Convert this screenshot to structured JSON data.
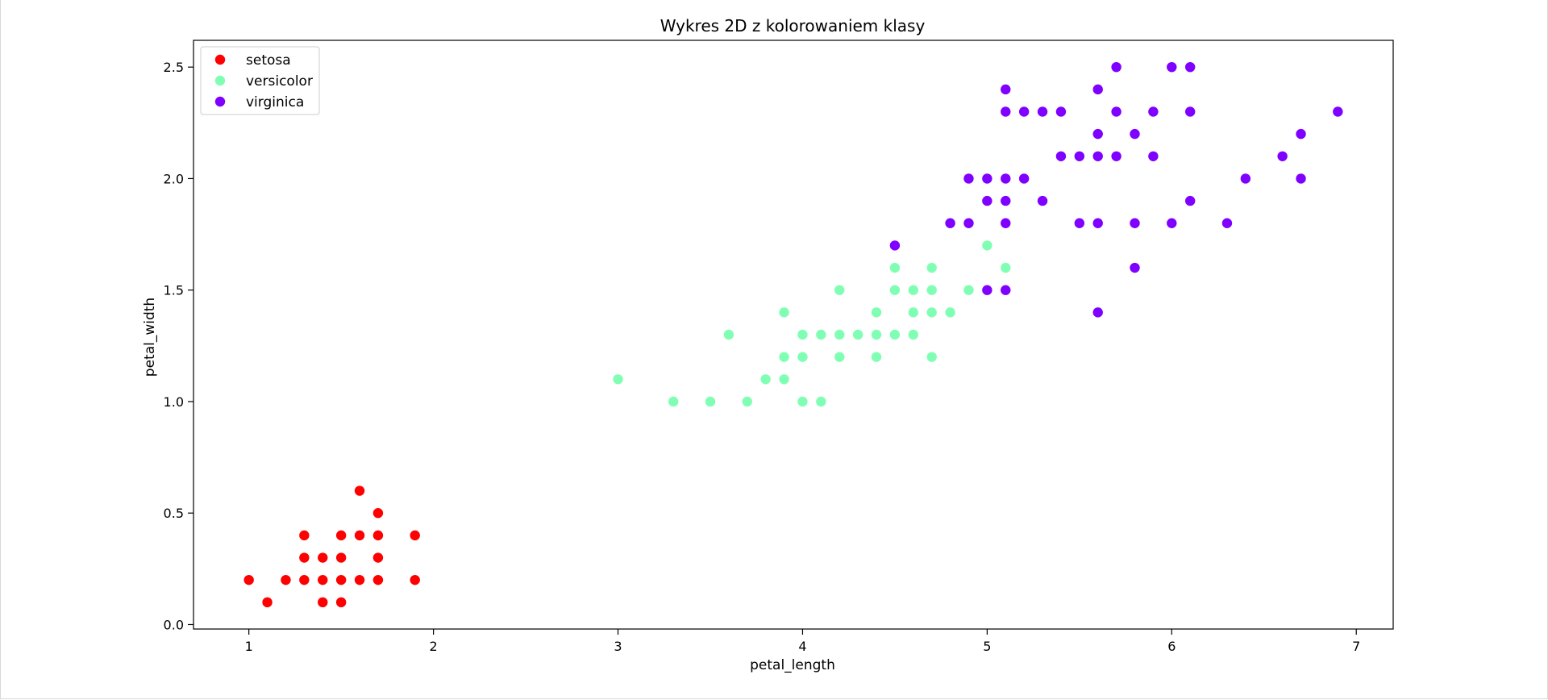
{
  "chart_data": {
    "type": "scatter",
    "title": "Wykres 2D z kolorowaniem klasy",
    "xlabel": "petal_length",
    "ylabel": "petal_width",
    "xlim": [
      0.7,
      7.2
    ],
    "ylim": [
      -0.02,
      2.62
    ],
    "xticks": [
      1,
      2,
      3,
      4,
      5,
      6,
      7
    ],
    "xtick_labels": [
      "1",
      "2",
      "3",
      "4",
      "5",
      "6",
      "7"
    ],
    "yticks": [
      0.0,
      0.5,
      1.0,
      1.5,
      2.0,
      2.5
    ],
    "ytick_labels": [
      "0.0",
      "0.5",
      "1.0",
      "1.5",
      "2.0",
      "2.5"
    ],
    "grid": false,
    "legend_position": "top-left",
    "series": [
      {
        "name": "setosa",
        "color": "#ff0000",
        "points": [
          [
            1.0,
            0.2
          ],
          [
            1.1,
            0.1
          ],
          [
            1.2,
            0.2
          ],
          [
            1.3,
            0.2
          ],
          [
            1.3,
            0.3
          ],
          [
            1.3,
            0.4
          ],
          [
            1.4,
            0.1
          ],
          [
            1.4,
            0.2
          ],
          [
            1.4,
            0.3
          ],
          [
            1.5,
            0.1
          ],
          [
            1.5,
            0.2
          ],
          [
            1.5,
            0.3
          ],
          [
            1.5,
            0.4
          ],
          [
            1.6,
            0.2
          ],
          [
            1.6,
            0.4
          ],
          [
            1.6,
            0.6
          ],
          [
            1.7,
            0.2
          ],
          [
            1.7,
            0.3
          ],
          [
            1.7,
            0.4
          ],
          [
            1.7,
            0.5
          ],
          [
            1.9,
            0.2
          ],
          [
            1.9,
            0.4
          ]
        ]
      },
      {
        "name": "versicolor",
        "color": "#80ffb4",
        "points": [
          [
            3.0,
            1.1
          ],
          [
            3.3,
            1.0
          ],
          [
            3.5,
            1.0
          ],
          [
            3.6,
            1.3
          ],
          [
            3.7,
            1.0
          ],
          [
            3.8,
            1.1
          ],
          [
            3.9,
            1.1
          ],
          [
            3.9,
            1.2
          ],
          [
            3.9,
            1.4
          ],
          [
            4.0,
            1.0
          ],
          [
            4.0,
            1.2
          ],
          [
            4.0,
            1.3
          ],
          [
            4.1,
            1.0
          ],
          [
            4.1,
            1.3
          ],
          [
            4.2,
            1.2
          ],
          [
            4.2,
            1.3
          ],
          [
            4.2,
            1.5
          ],
          [
            4.3,
            1.3
          ],
          [
            4.4,
            1.2
          ],
          [
            4.4,
            1.3
          ],
          [
            4.4,
            1.4
          ],
          [
            4.5,
            1.3
          ],
          [
            4.5,
            1.5
          ],
          [
            4.5,
            1.6
          ],
          [
            4.6,
            1.3
          ],
          [
            4.6,
            1.4
          ],
          [
            4.6,
            1.5
          ],
          [
            4.7,
            1.2
          ],
          [
            4.7,
            1.4
          ],
          [
            4.7,
            1.5
          ],
          [
            4.7,
            1.6
          ],
          [
            4.8,
            1.4
          ],
          [
            4.8,
            1.8
          ],
          [
            4.9,
            1.5
          ],
          [
            5.0,
            1.7
          ],
          [
            5.1,
            1.6
          ]
        ]
      },
      {
        "name": "virginica",
        "color": "#8000ff",
        "points": [
          [
            4.5,
            1.7
          ],
          [
            4.8,
            1.8
          ],
          [
            4.9,
            1.8
          ],
          [
            4.9,
            2.0
          ],
          [
            5.0,
            1.5
          ],
          [
            5.0,
            1.9
          ],
          [
            5.0,
            2.0
          ],
          [
            5.1,
            1.5
          ],
          [
            5.1,
            1.8
          ],
          [
            5.1,
            1.9
          ],
          [
            5.1,
            2.0
          ],
          [
            5.1,
            2.3
          ],
          [
            5.1,
            2.4
          ],
          [
            5.2,
            2.0
          ],
          [
            5.2,
            2.3
          ],
          [
            5.3,
            1.9
          ],
          [
            5.3,
            2.3
          ],
          [
            5.4,
            2.1
          ],
          [
            5.4,
            2.3
          ],
          [
            5.5,
            1.8
          ],
          [
            5.5,
            2.1
          ],
          [
            5.6,
            1.4
          ],
          [
            5.6,
            1.8
          ],
          [
            5.6,
            2.1
          ],
          [
            5.6,
            2.2
          ],
          [
            5.6,
            2.4
          ],
          [
            5.7,
            2.1
          ],
          [
            5.7,
            2.3
          ],
          [
            5.7,
            2.5
          ],
          [
            5.8,
            1.6
          ],
          [
            5.8,
            1.8
          ],
          [
            5.8,
            2.2
          ],
          [
            5.9,
            2.1
          ],
          [
            5.9,
            2.3
          ],
          [
            6.0,
            1.8
          ],
          [
            6.0,
            2.5
          ],
          [
            6.1,
            1.9
          ],
          [
            6.1,
            2.3
          ],
          [
            6.1,
            2.5
          ],
          [
            6.3,
            1.8
          ],
          [
            6.4,
            2.0
          ],
          [
            6.6,
            2.1
          ],
          [
            6.7,
            2.0
          ],
          [
            6.7,
            2.2
          ],
          [
            6.9,
            2.3
          ]
        ]
      }
    ]
  }
}
